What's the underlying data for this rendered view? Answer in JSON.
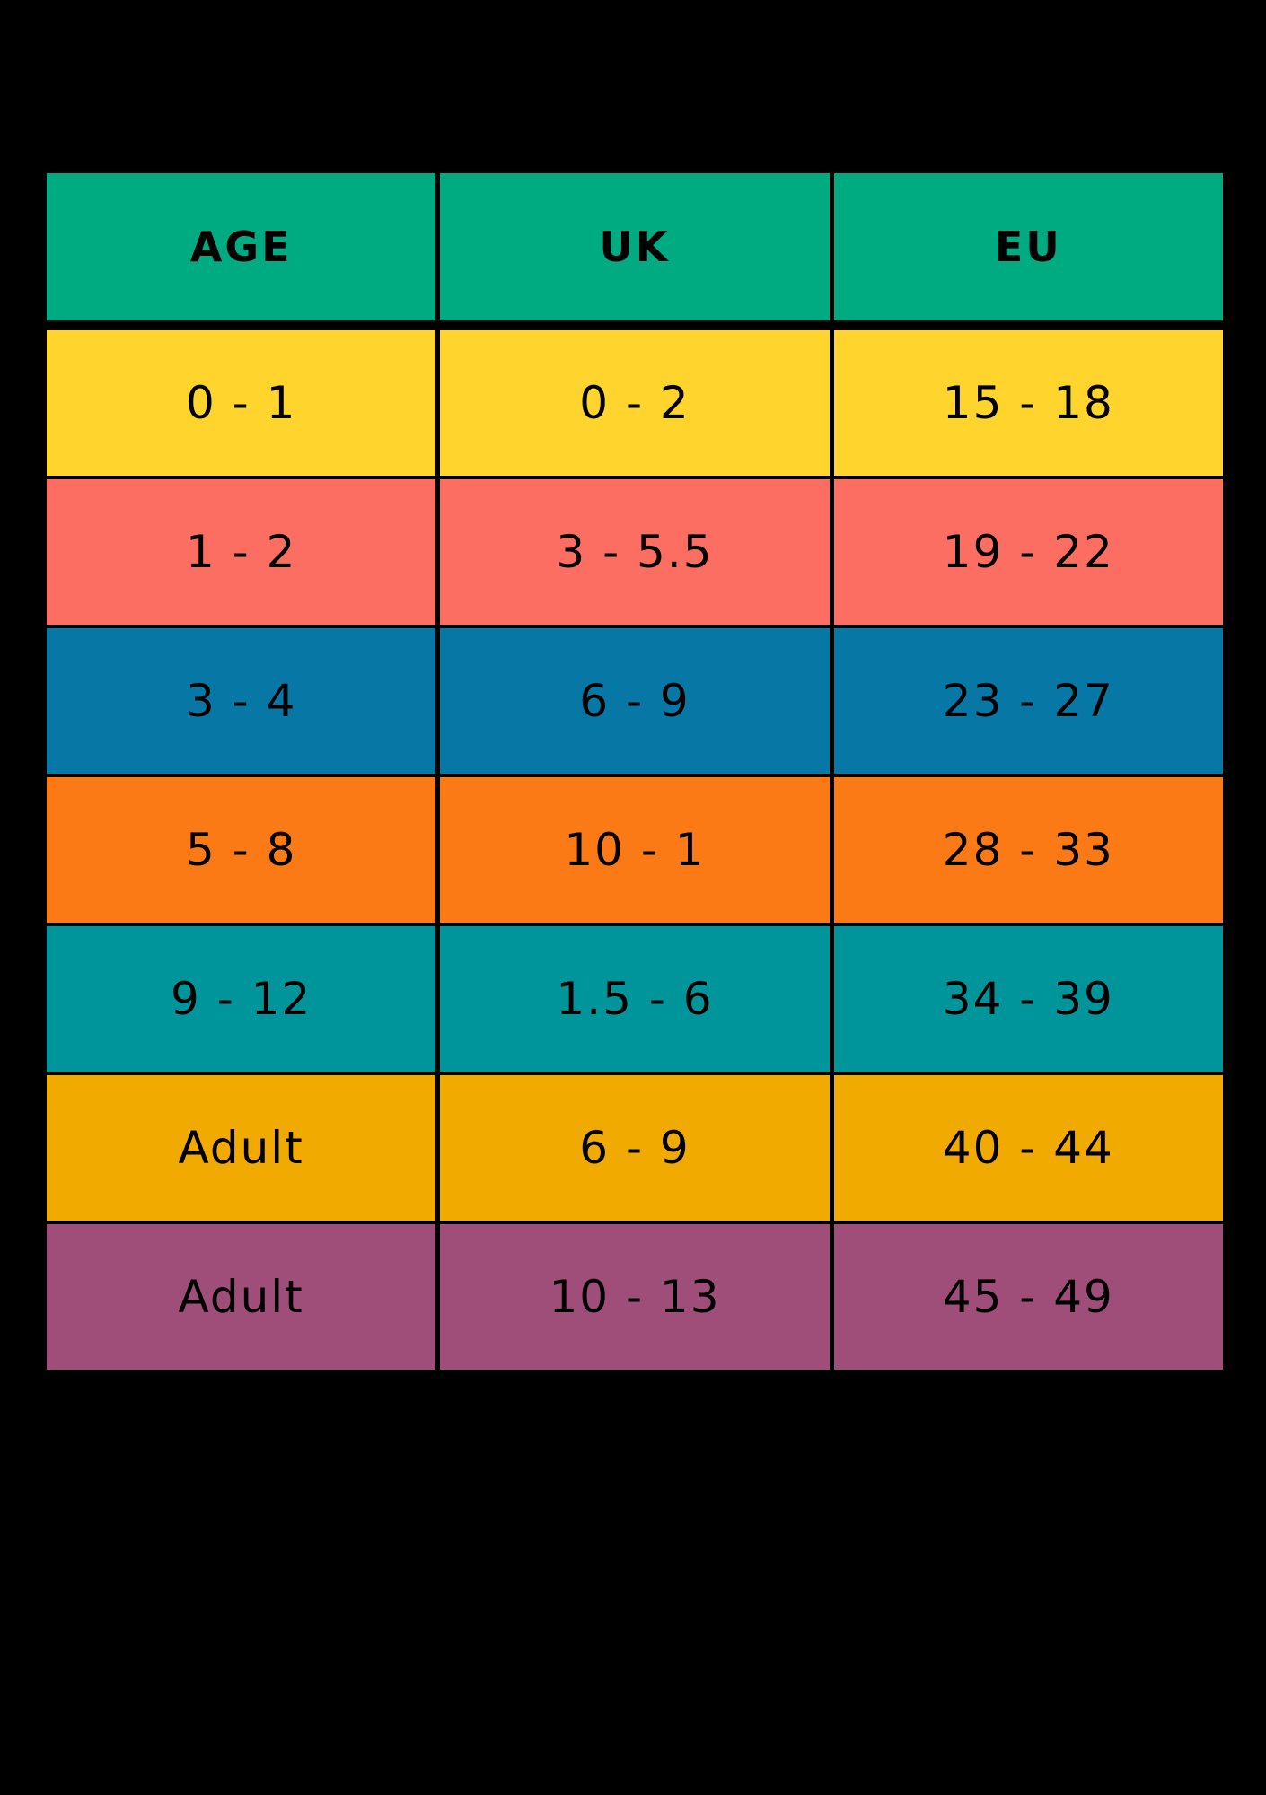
{
  "chart_data": {
    "type": "table",
    "title": "",
    "columns": [
      "AGE",
      "UK",
      "EU"
    ],
    "rows": [
      [
        "0 - 1",
        "0 - 2",
        "15 - 18"
      ],
      [
        "1 - 2",
        "3 - 5.5",
        "19 - 22"
      ],
      [
        "3 - 4",
        "6 - 9",
        "23 - 27"
      ],
      [
        "5 - 8",
        "10 - 1",
        "28 - 33"
      ],
      [
        "9 - 12",
        "1.5 - 6",
        "34 - 39"
      ],
      [
        "Adult",
        "6 - 9",
        "40 - 44"
      ],
      [
        "Adult",
        "10 - 13",
        "45 - 49"
      ]
    ],
    "row_colors": [
      "#FFD42C",
      "#FC6D62",
      "#0778A6",
      "#FB7A15",
      "#00959A",
      "#F0AA00",
      "#9E4E78"
    ],
    "header_color": "#00AB81",
    "text_color": "#000000",
    "background": "#000000",
    "grid_gap_color": "#000000"
  }
}
